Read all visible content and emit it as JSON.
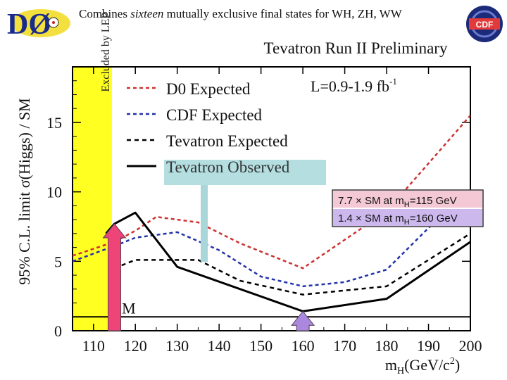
{
  "header": {
    "subtitle_prefix": "Combines ",
    "subtitle_emph": "sixteen",
    "subtitle_suffix": " mutually exclusive final states for WH, ZH, WW",
    "d0_logo_text": "DØ",
    "cdf_logo_text": "CDF"
  },
  "chart_data": {
    "type": "line",
    "title": "Tevatron Run II Preliminary",
    "xlabel": "m_H(GeV/c^2)",
    "ylabel": "95% C.L. limit σ(Higgs) / SM",
    "xlim": [
      105,
      200
    ],
    "ylim": [
      0,
      19
    ],
    "x_ticks": [
      110,
      120,
      130,
      140,
      150,
      160,
      170,
      180,
      190,
      200
    ],
    "y_ticks": [
      0,
      5,
      10,
      15
    ],
    "luminosity_label": "L=0.9-1.9 fb",
    "luminosity_exponent": "-1",
    "excluded_region": {
      "label": "Excluded by LEP",
      "x_range": [
        105,
        114.4
      ]
    },
    "sm_line": {
      "label": "SM",
      "y": 1
    },
    "series": [
      {
        "name": "D0 Expected",
        "style": "dashed",
        "color": "#cc3333",
        "x": [
          105,
          115,
          120,
          125,
          135,
          145,
          160,
          180,
          200
        ],
        "y": [
          5.4,
          6.4,
          7.2,
          8.2,
          7.8,
          6.3,
          4.5,
          8.6,
          15.5
        ]
      },
      {
        "name": "CDF Expected",
        "style": "dashed",
        "color": "#2233aa",
        "x": [
          105,
          115,
          120,
          130,
          140,
          150,
          160,
          170,
          180,
          190,
          200
        ],
        "y": [
          5.0,
          6.1,
          6.7,
          7.1,
          5.8,
          3.9,
          3.2,
          3.5,
          4.4,
          7.4,
          10.2
        ]
      },
      {
        "name": "Tevatron Expected",
        "style": "dashed",
        "color": "#000000",
        "x": [
          115,
          120,
          135,
          145,
          160,
          180,
          200
        ],
        "y": [
          4.5,
          5.1,
          5.1,
          3.6,
          2.6,
          3.2,
          7.0
        ]
      },
      {
        "name": "Tevatron Observed",
        "style": "solid",
        "color": "#000000",
        "x": [
          113,
          115,
          120,
          130,
          160,
          180,
          200
        ],
        "y": [
          7.0,
          7.7,
          8.5,
          4.6,
          1.4,
          2.3,
          6.4
        ]
      }
    ],
    "annotations": [
      {
        "text_a": "7.7 × SM at m",
        "sub": "H",
        "text_b": "=115 GeV",
        "arrow_x": 115,
        "arrow_y": 7.7,
        "arrow_color": "#ee4477"
      },
      {
        "text_a": "1.4 × SM at m",
        "sub": "H",
        "text_b": "=160 GeV",
        "arrow_x": 160,
        "arrow_y": 1.4,
        "arrow_color": "#aa88dd"
      }
    ]
  }
}
